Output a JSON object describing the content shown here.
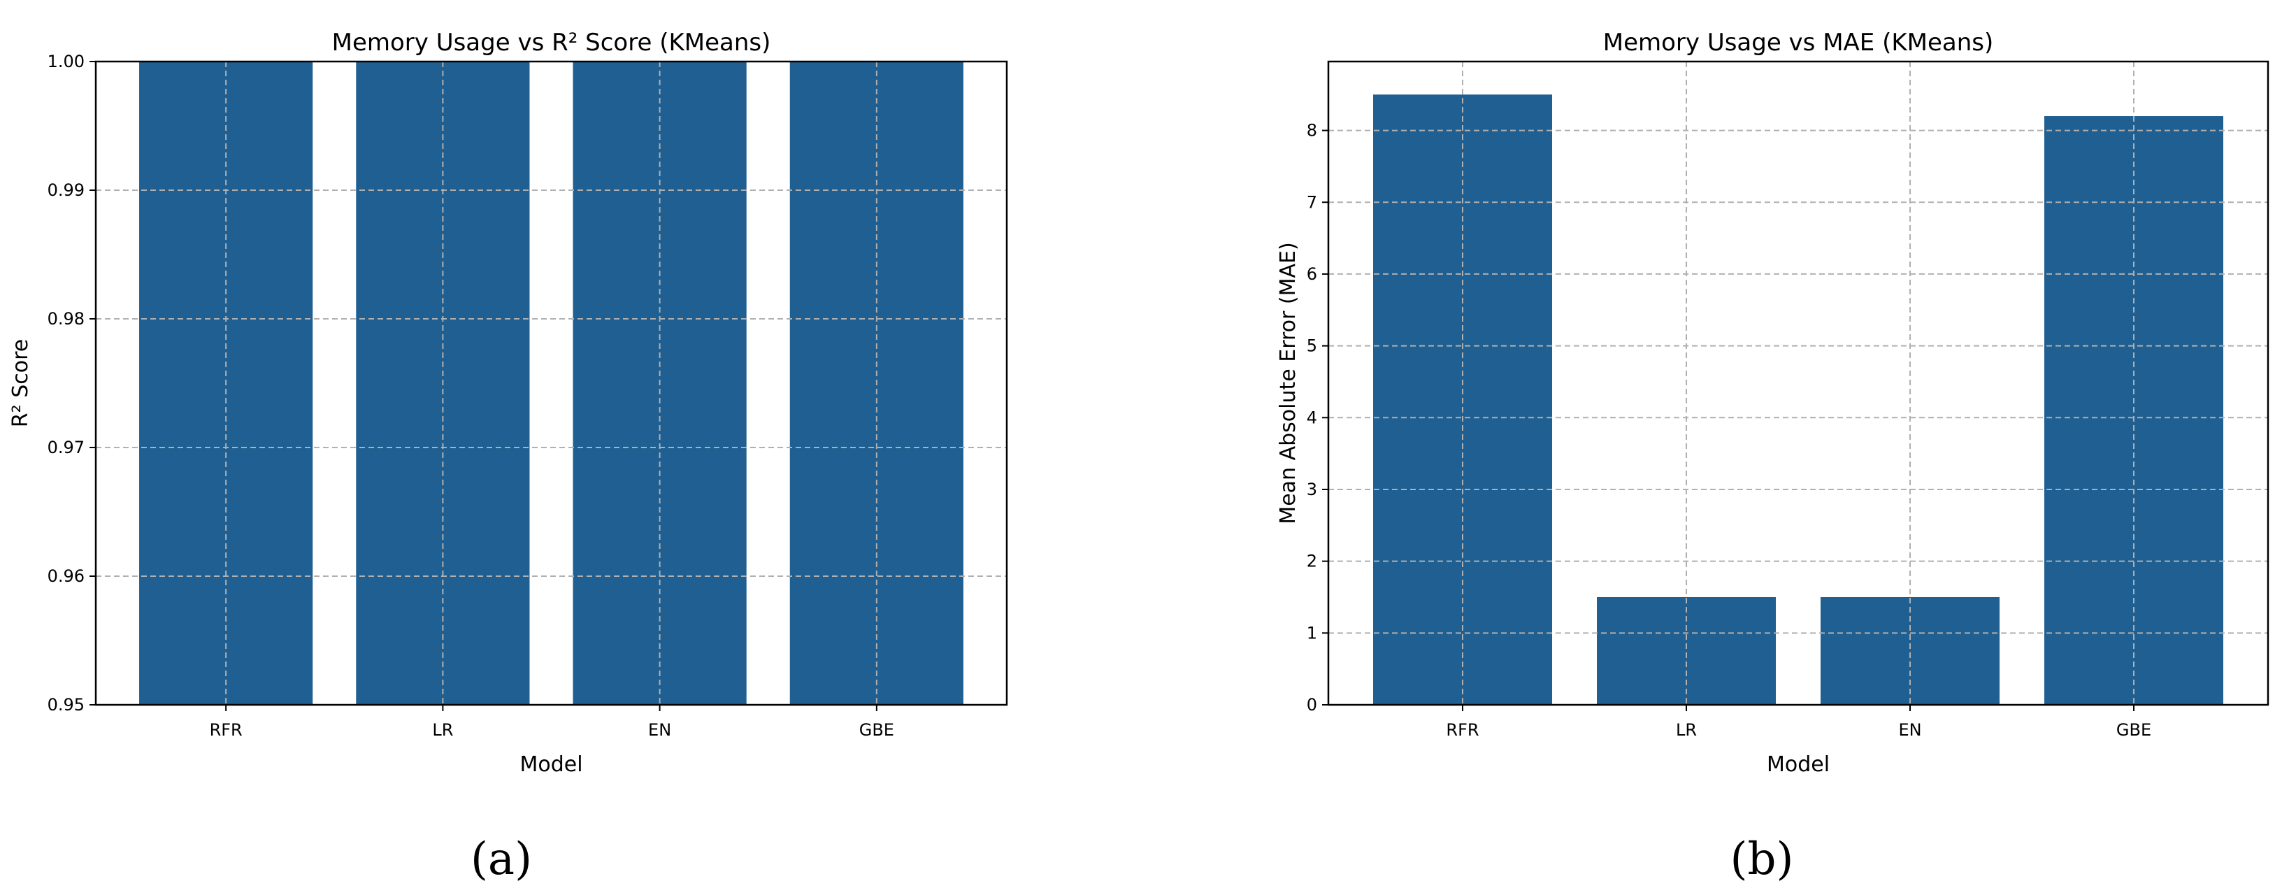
{
  "chart_data": [
    {
      "type": "bar",
      "title": "Memory Usage vs R² Score (KMeans)",
      "xlabel": "Model",
      "ylabel": "R² Score",
      "categories": [
        "RFR",
        "LR",
        "EN",
        "GBE"
      ],
      "values": [
        1.0,
        1.0,
        1.0,
        1.0
      ],
      "ylim": [
        0.95,
        1.0
      ],
      "yticks": [
        "0.95",
        "0.96",
        "0.97",
        "0.98",
        "0.99",
        "1.00"
      ],
      "grid": true,
      "bar_color": "#1f5f91"
    },
    {
      "type": "bar",
      "title": "Memory Usage vs MAE (KMeans)",
      "xlabel": "Model",
      "ylabel": "Mean Absolute Error (MAE)",
      "categories": [
        "RFR",
        "LR",
        "EN",
        "GBE"
      ],
      "values": [
        8.5,
        1.5,
        1.5,
        8.2
      ],
      "ylim": [
        0,
        8.96
      ],
      "yticks": [
        "0",
        "1",
        "2",
        "3",
        "4",
        "5",
        "6",
        "7",
        "8"
      ],
      "grid": true,
      "bar_color": "#1f5f91"
    }
  ],
  "captions": [
    "(a)",
    "(b)"
  ]
}
